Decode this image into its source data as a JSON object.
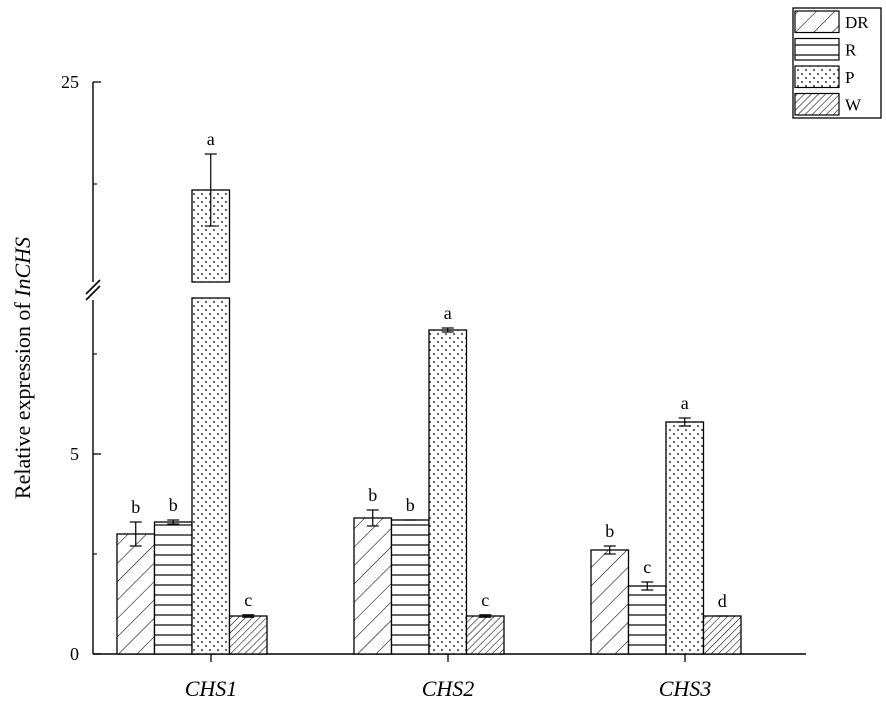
{
  "chart_data": {
    "type": "bar",
    "ylabel_prefix": "Relative expression of ",
    "ylabel_italic": "InCHS",
    "categories": [
      "CHS1",
      "CHS2",
      "CHS3"
    ],
    "y_axis": {
      "lower_range": [
        0,
        10
      ],
      "upper_range": [
        19,
        25
      ],
      "break_between": [
        10,
        19
      ],
      "tick_labels": [
        "0",
        "5",
        "25"
      ],
      "tick_values": [
        0,
        5,
        25
      ]
    },
    "series": [
      {
        "name": "DR",
        "pattern": "diag-sparse",
        "values": [
          3.0,
          3.4,
          2.6
        ],
        "errors": [
          0.3,
          0.2,
          0.1
        ],
        "sig": [
          "b",
          "b",
          "b"
        ]
      },
      {
        "name": "R",
        "pattern": "horizontal",
        "values": [
          3.3,
          3.35,
          1.7
        ],
        "errors": [
          0.05,
          0.0,
          0.1
        ],
        "sig": [
          "b",
          "b",
          "c"
        ]
      },
      {
        "name": "P",
        "pattern": "dots",
        "values": [
          22.0,
          8.1,
          5.8
        ],
        "errors": [
          1.0,
          0.05,
          0.1
        ],
        "sig": [
          "a",
          "a",
          "a"
        ]
      },
      {
        "name": "W",
        "pattern": "diag-dense",
        "values": [
          0.95,
          0.95,
          0.95
        ],
        "errors": [
          0.03,
          0.03,
          0.0
        ],
        "sig": [
          "c",
          "c",
          "d"
        ]
      }
    ],
    "legend_position": "top-right",
    "grid": false
  }
}
